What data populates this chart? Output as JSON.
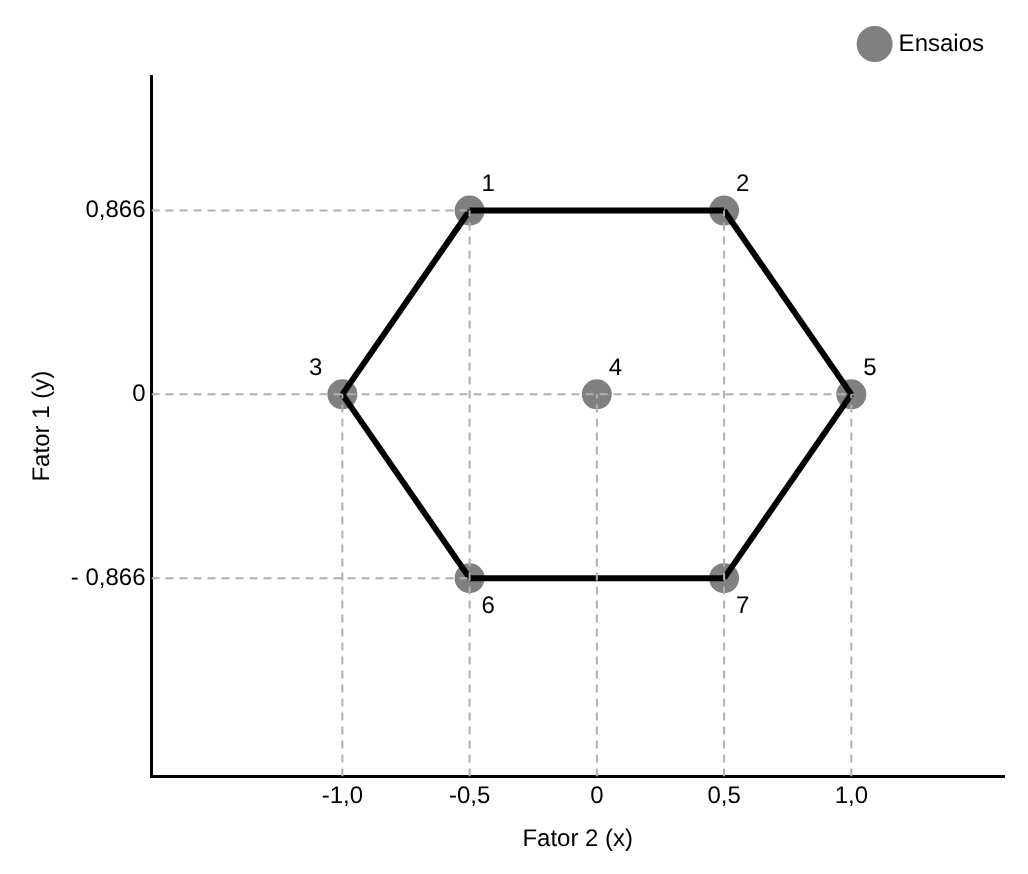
{
  "chart_data": {
    "type": "scatter",
    "xlabel": "Fator 2 (x)",
    "ylabel": "Fator 1 (y)",
    "xlim": [
      -1.75,
      1.6
    ],
    "ylim": [
      -1.8,
      1.5
    ],
    "xticks": [
      {
        "value": -1,
        "label": "-1,0"
      },
      {
        "value": -0.5,
        "label": "-0,5"
      },
      0,
      {
        "value": 0.5,
        "label": "0,5"
      },
      {
        "value": 1,
        "label": "1,0"
      }
    ],
    "yticks": [
      {
        "value": -0.866,
        "label": "- 0,866"
      },
      0,
      {
        "value": 0.866,
        "label": "0,866"
      }
    ],
    "grid": false,
    "legend": "top right",
    "series": [
      {
        "type": "line",
        "color": "#b0b0b0",
        "line_style": "dashed",
        "marker": "none",
        "x": [
          -1.75,
          -0.5
        ],
        "values": [
          0.866,
          0.866
        ]
      },
      {
        "type": "line",
        "color": "#b0b0b0",
        "line_style": "dashed",
        "marker": "none",
        "x": [
          -1.75,
          1
        ],
        "values": [
          0,
          0
        ]
      },
      {
        "type": "line",
        "color": "#b0b0b0",
        "line_style": "dashed",
        "marker": "none",
        "x": [
          -1.75,
          -0.5
        ],
        "values": [
          -0.866,
          -0.866
        ]
      },
      {
        "type": "line",
        "color": "#b0b0b0",
        "line_style": "dashed",
        "marker": "none",
        "x": [
          -1,
          -1
        ],
        "values": [
          -1.8,
          0
        ]
      },
      {
        "type": "line",
        "color": "#b0b0b0",
        "line_style": "dashed",
        "marker": "none",
        "x": [
          -0.5,
          -0.5
        ],
        "values": [
          -1.8,
          0.866
        ]
      },
      {
        "type": "line",
        "color": "#b0b0b0",
        "line_style": "dashed",
        "marker": "none",
        "x": [
          0,
          0
        ],
        "values": [
          -1.8,
          0
        ]
      },
      {
        "type": "line",
        "color": "#b0b0b0",
        "line_style": "dashed",
        "marker": "none",
        "x": [
          0.5,
          0.5
        ],
        "values": [
          -1.8,
          0.866
        ]
      },
      {
        "type": "line",
        "color": "#b0b0b0",
        "line_style": "dashed",
        "marker": "none",
        "x": [
          1,
          1
        ],
        "values": [
          -1.8,
          0
        ]
      },
      {
        "type": "line",
        "color": "#000000",
        "line_style": "solid",
        "marker": "none",
        "x": [
          -1,
          -0.5
        ],
        "values": [
          0,
          0.866
        ]
      },
      {
        "type": "line",
        "color": "#000000",
        "line_style": "solid",
        "marker": "none",
        "x": [
          -0.5,
          0.5
        ],
        "values": [
          0.866,
          0.866
        ]
      },
      {
        "type": "line",
        "color": "#000000",
        "line_style": "solid",
        "marker": "none",
        "x": [
          0.5,
          1
        ],
        "values": [
          0.866,
          0
        ]
      },
      {
        "type": "line",
        "color": "#000000",
        "line_style": "solid",
        "marker": "none",
        "x": [
          0.5,
          1
        ],
        "values": [
          -0.866,
          0
        ]
      },
      {
        "type": "line",
        "color": "#000000",
        "line_style": "solid",
        "marker": "none",
        "x": [
          -0.5,
          0.5
        ],
        "values": [
          -0.866,
          -0.866
        ]
      },
      {
        "type": "line",
        "color": "#000000",
        "line_style": "solid",
        "marker": "none",
        "x": [
          -1,
          -0.5
        ],
        "values": [
          0,
          -0.866
        ]
      },
      {
        "name": "Ensaios",
        "color": "#808080",
        "marker": "circle",
        "x": [
          -0.5,
          0.5,
          -1,
          0,
          1,
          -0.5,
          0.5
        ],
        "values": [
          0.866,
          0.866,
          0,
          0,
          0,
          -0.866,
          -0.866
        ]
      }
    ],
    "annotations": [
      {
        "text": "1",
        "x": -0.5,
        "y": 0.866
      },
      {
        "text": "2",
        "x": 0.5,
        "y": 0.866
      },
      {
        "text": "3",
        "x": -1,
        "y": 0
      },
      {
        "text": "4",
        "x": 0,
        "y": 0
      },
      {
        "text": "5",
        "x": 1,
        "y": 0
      },
      {
        "text": "6",
        "x": -0.5,
        "y": -0.866
      },
      {
        "text": "7",
        "x": 0.5,
        "y": -0.866
      }
    ]
  }
}
